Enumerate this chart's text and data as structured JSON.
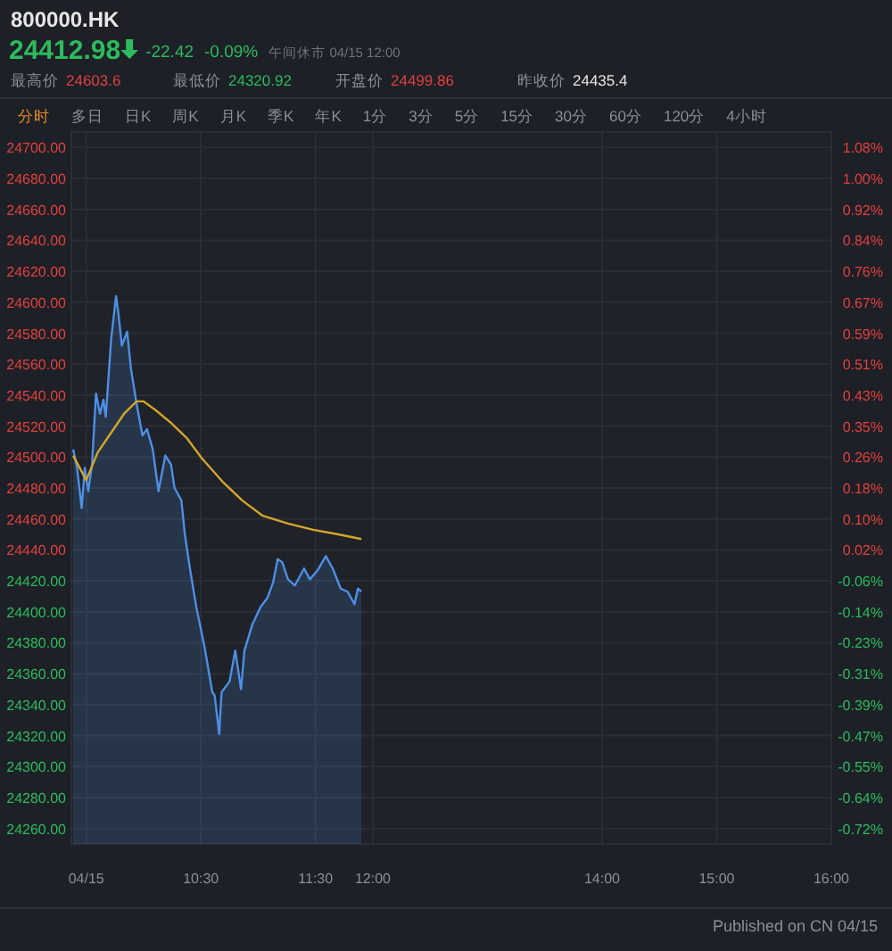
{
  "chart_data": {
    "type": "area",
    "title": "800000.HK",
    "annotations": [
      "24412.98",
      "-22.42",
      "-0.09%",
      "午间休市 04/15 12:00",
      "最高价",
      "24603.6",
      "最低价",
      "24320.92",
      "开盘价",
      "24499.86",
      "昨收价",
      "24435.4",
      "分时",
      "多日",
      "日K",
      "周K",
      "月K",
      "季K",
      "年K",
      "1分",
      "3分",
      "5分",
      "15分",
      "30分",
      "60分",
      "120分",
      "4小时",
      "Published on CN 04/15"
    ],
    "series": [
      {
        "color": "#4d8fe6",
        "x": [
          9.386,
          9.42,
          9.46,
          9.487,
          9.518,
          9.55,
          9.585,
          9.62,
          9.65,
          9.67,
          9.717,
          9.76,
          9.78,
          9.81,
          9.857,
          9.89,
          9.94,
          9.99,
          10.03,
          10.08,
          10.13,
          10.19,
          10.24,
          10.27,
          10.33,
          10.36,
          10.4,
          10.46,
          10.53,
          10.6,
          10.62,
          10.66,
          10.68,
          10.75,
          10.8,
          10.85,
          10.88,
          10.95,
          11.02,
          11.08,
          11.13,
          11.17,
          11.21,
          11.26,
          11.32,
          11.4,
          11.45,
          11.52,
          11.59,
          11.65,
          11.72,
          11.78,
          11.84,
          11.87,
          11.9
        ],
        "values": [
          24505,
          24493,
          24467,
          24493,
          24478,
          24495,
          24541,
          24528,
          24537,
          24526,
          24576,
          24604,
          24593,
          24572,
          24581,
          24557,
          24534,
          24514,
          24518,
          24505,
          24478,
          24501,
          24495,
          24480,
          24472,
          24450,
          24430,
          24403,
          24378,
          24348,
          24346,
          24321,
          24348,
          24355,
          24375,
          24350,
          24375,
          24392,
          24403,
          24409,
          24419,
          24434,
          24432,
          24421,
          24417,
          24428,
          24421,
          24427,
          24436,
          24428,
          24415,
          24413,
          24405,
          24415,
          24413
        ]
      },
      {
        "type": "line",
        "color": "#d4a62a",
        "x": [
          9.386,
          9.5,
          9.6,
          9.72,
          9.83,
          9.94,
          10.0,
          10.11,
          10.24,
          10.38,
          10.51,
          10.69,
          10.86,
          11.04,
          11.26,
          11.48,
          11.7,
          11.9
        ],
        "values": [
          24501,
          24485,
          24503,
          24516,
          24528,
          24536,
          24536,
          24530,
          24522,
          24512,
          24499,
          24484,
          24472,
          24462,
          24457,
          24453,
          24450,
          24447
        ]
      }
    ],
    "xlim": [
      9.37,
      16
    ],
    "xticks": [
      {
        "value": 9.5,
        "label": "04/15"
      },
      {
        "value": 10.5,
        "label": "10:30"
      },
      {
        "value": 11.5,
        "label": "11:30"
      },
      {
        "value": 12,
        "label": "12:00"
      },
      {
        "value": 14,
        "label": "14:00"
      },
      {
        "value": 15,
        "label": "15:00"
      },
      {
        "value": 16,
        "label": "16:00"
      }
    ],
    "ylim": [
      24250,
      24710
    ],
    "yticks": [
      {
        "value": 24700,
        "label": "24700.00"
      },
      {
        "value": 24680,
        "label": "24680.00"
      },
      {
        "value": 24660,
        "label": "24660.00"
      },
      {
        "value": 24640,
        "label": "24640.00"
      },
      {
        "value": 24620,
        "label": "24620.00"
      },
      {
        "value": 24600,
        "label": "24600.00"
      },
      {
        "value": 24580,
        "label": "24580.00"
      },
      {
        "value": 24560,
        "label": "24560.00"
      },
      {
        "value": 24540,
        "label": "24540.00"
      },
      {
        "value": 24520,
        "label": "24520.00"
      },
      {
        "value": 24500,
        "label": "24500.00"
      },
      {
        "value": 24480,
        "label": "24480.00"
      },
      {
        "value": 24460,
        "label": "24460.00"
      },
      {
        "value": 24440,
        "label": "24440.00"
      },
      {
        "value": 24420,
        "label": "24420.00"
      },
      {
        "value": 24400,
        "label": "24400.00"
      },
      {
        "value": 24380,
        "label": "24380.00"
      },
      {
        "value": 24360,
        "label": "24360.00"
      },
      {
        "value": 24340,
        "label": "24340.00"
      },
      {
        "value": 24320,
        "label": "24320.00"
      },
      {
        "value": 24300,
        "label": "24300.00"
      },
      {
        "value": 24280,
        "label": "24280.00"
      },
      {
        "value": 24260,
        "label": "24260.00"
      }
    ],
    "y2lim": [
      -0.7587,
      1.1238
    ],
    "y2ticks": [
      {
        "value": 1.0829,
        "label": "1.08%"
      },
      {
        "value": 1.001,
        "label": "1.00%"
      },
      {
        "value": 0.9192,
        "label": "0.92%"
      },
      {
        "value": 0.8373,
        "label": "0.84%"
      },
      {
        "value": 0.7555,
        "label": "0.76%"
      },
      {
        "value": 0.6736,
        "label": "0.67%"
      },
      {
        "value": 0.5918,
        "label": "0.59%"
      },
      {
        "value": 0.5099,
        "label": "0.51%"
      },
      {
        "value": 0.4281,
        "label": "0.43%"
      },
      {
        "value": 0.3462,
        "label": "0.35%"
      },
      {
        "value": 0.2644,
        "label": "0.26%"
      },
      {
        "value": 0.1825,
        "label": "0.18%"
      },
      {
        "value": 0.1007,
        "label": "0.10%"
      },
      {
        "value": 0.0188,
        "label": "0.02%"
      },
      {
        "value": -0.063,
        "label": "-0.06%"
      },
      {
        "value": -0.1449,
        "label": "-0.14%"
      },
      {
        "value": -0.2267,
        "label": "-0.23%"
      },
      {
        "value": -0.3086,
        "label": "-0.31%"
      },
      {
        "value": -0.3904,
        "label": "-0.39%"
      },
      {
        "value": -0.4723,
        "label": "-0.47%"
      },
      {
        "value": -0.5541,
        "label": "-0.55%"
      },
      {
        "value": -0.636,
        "label": "-0.64%"
      },
      {
        "value": -0.7178,
        "label": "-0.72%"
      }
    ],
    "grid": true
  }
}
